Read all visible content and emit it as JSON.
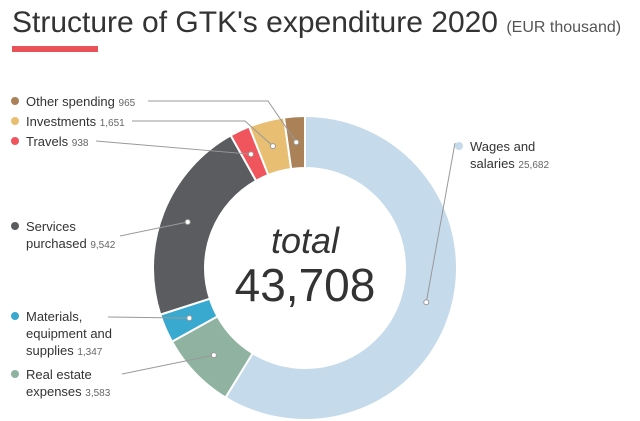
{
  "title": "Structure of GTK's expenditure 2020",
  "unit_note": "(EUR thousand)",
  "center": {
    "label": "total",
    "value": "43,708"
  },
  "colors": {
    "title_underline": "#e8535a",
    "leader_line": "#999999"
  },
  "chart_data": {
    "type": "pie",
    "variant": "donut",
    "title": "Structure of GTK's expenditure 2020",
    "unit": "EUR thousand",
    "total": 43708,
    "legend_position": "left and right",
    "series": [
      {
        "name": "Wages and salaries",
        "value": 25682,
        "value_label": "25,682",
        "color": "#c5daea"
      },
      {
        "name": "Real estate expenses",
        "value": 3583,
        "value_label": "3,583",
        "color": "#8fb3a0"
      },
      {
        "name": "Materials, equipment and supplies",
        "value": 1347,
        "value_label": "1,347",
        "color": "#3aa9cf"
      },
      {
        "name": "Services purchased",
        "value": 9542,
        "value_label": "9,542",
        "color": "#5b5c60"
      },
      {
        "name": "Travels",
        "value": 938,
        "value_label": "938",
        "color": "#f0555d"
      },
      {
        "name": "Investments",
        "value": 1651,
        "value_label": "1,651",
        "color": "#e8bf72"
      },
      {
        "name": "Other spending",
        "value": 965,
        "value_label": "965",
        "color": "#ab8158"
      }
    ]
  }
}
